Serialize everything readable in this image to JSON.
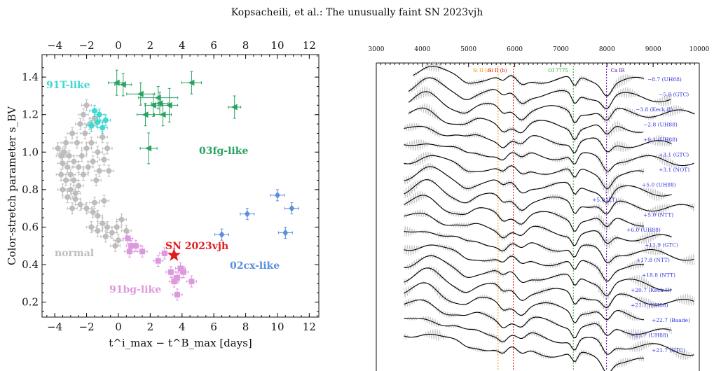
{
  "header": "Kopsacheili, et al.: The unusually faint SN 2023vjh",
  "colors": {
    "normal": "#bdbdbd",
    "t91": "#40d8d0",
    "fg03": "#2aa362",
    "cx02": "#5b8fdf",
    "bg91": "#dd99dd",
    "sn": "#e31b1b",
    "epoch": "#3333dd",
    "si_a": "#ff9900",
    "si_b": "#dd1111",
    "oi": "#22aa22",
    "ca": "#5500aa"
  },
  "chart_data": [
    {
      "type": "scatter",
      "xlabel": "t^i_max − t^B_max [days]",
      "ylabel": "Color-stretch parameter s_BV",
      "xlim": [
        -4.8,
        12.6
      ],
      "ylim": [
        0.12,
        1.52
      ],
      "xticks": [
        "−4",
        "−2",
        "0",
        "2",
        "4",
        "6",
        "8",
        "10",
        "12"
      ],
      "yticks": [
        "0.2",
        "0.4",
        "0.6",
        "0.8",
        "1.0",
        "1.2",
        "1.4"
      ],
      "groups": [
        {
          "name": "normal",
          "marker": "circle",
          "color": "normal",
          "points": [
            [
              -3.8,
              1.02
            ],
            [
              -3.6,
              0.98
            ],
            [
              -3.5,
              0.94
            ],
            [
              -3.4,
              1.0
            ],
            [
              -3.6,
              0.88
            ],
            [
              -3.3,
              0.85
            ],
            [
              -3.5,
              0.8
            ],
            [
              -3.2,
              0.92
            ],
            [
              -3.3,
              1.05
            ],
            [
              -3.1,
              0.98
            ],
            [
              -3.0,
              0.88
            ],
            [
              -3.0,
              0.8
            ],
            [
              -2.9,
              1.1
            ],
            [
              -2.8,
              0.95
            ],
            [
              -2.8,
              0.85
            ],
            [
              -2.7,
              0.78
            ],
            [
              -2.6,
              1.05
            ],
            [
              -2.5,
              0.92
            ],
            [
              -2.5,
              0.82
            ],
            [
              -2.4,
              1.15
            ],
            [
              -2.3,
              0.98
            ],
            [
              -2.2,
              0.88
            ],
            [
              -2.2,
              1.2
            ],
            [
              -2.1,
              1.1
            ],
            [
              -2.0,
              1.25
            ],
            [
              -2.0,
              1.02
            ],
            [
              -1.9,
              0.92
            ],
            [
              -1.8,
              1.15
            ],
            [
              -1.7,
              1.05
            ],
            [
              -1.6,
              0.95
            ],
            [
              -1.5,
              1.18
            ],
            [
              -1.4,
              0.85
            ],
            [
              -1.3,
              1.0
            ],
            [
              -1.2,
              0.9
            ],
            [
              -1.0,
              1.08
            ],
            [
              -0.9,
              0.96
            ],
            [
              -0.7,
              1.02
            ],
            [
              -0.6,
              0.9
            ],
            [
              -2.7,
              0.75
            ],
            [
              -2.4,
              0.72
            ],
            [
              -2.0,
              0.7
            ],
            [
              -1.6,
              0.68
            ],
            [
              -1.3,
              0.66
            ],
            [
              -1.0,
              0.62
            ],
            [
              -0.7,
              0.6
            ],
            [
              -0.4,
              0.57
            ],
            [
              -0.1,
              0.6
            ],
            [
              0.2,
              0.64
            ],
            [
              0.5,
              0.58
            ],
            [
              -1.7,
              0.6
            ],
            [
              -1.3,
              0.58
            ],
            [
              -0.8,
              0.55
            ],
            [
              -1.5,
              0.73
            ],
            [
              -0.9,
              0.74
            ],
            [
              -2.9,
              0.7
            ],
            [
              -3.2,
              0.76
            ],
            [
              0.0,
              0.53
            ],
            [
              -0.2,
              0.5
            ]
          ]
        },
        {
          "name": "91T-like",
          "marker": "circle",
          "color": "t91",
          "points": [
            [
              -1.5,
              1.22
            ],
            [
              -1.7,
              1.14
            ],
            [
              -1.3,
              1.16
            ],
            [
              -1.0,
              1.13
            ],
            [
              -0.8,
              1.17
            ],
            [
              -1.2,
              1.2
            ]
          ]
        },
        {
          "name": "03fg-like",
          "marker": "triangle-left",
          "color": "fg03",
          "points": [
            [
              -0.1,
              1.37
            ],
            [
              0.3,
              1.36
            ],
            [
              1.4,
              1.31
            ],
            [
              2.2,
              1.25
            ],
            [
              2.5,
              1.29
            ],
            [
              3.2,
              1.25
            ],
            [
              1.7,
              1.2
            ],
            [
              2.8,
              1.2
            ],
            [
              1.9,
              1.02
            ],
            [
              4.6,
              1.37
            ],
            [
              7.3,
              1.24
            ],
            [
              2.6,
              1.26
            ]
          ]
        },
        {
          "name": "02cx-like",
          "marker": "diamond",
          "color": "cx02",
          "points": [
            [
              6.5,
              0.56
            ],
            [
              8.1,
              0.67
            ],
            [
              10.0,
              0.77
            ],
            [
              10.9,
              0.7
            ],
            [
              10.5,
              0.57
            ]
          ]
        },
        {
          "name": "91bg-like",
          "marker": "square",
          "color": "bg91",
          "points": [
            [
              0.6,
              0.54
            ],
            [
              0.8,
              0.5
            ],
            [
              0.7,
              0.47
            ],
            [
              1.1,
              0.5
            ],
            [
              1.5,
              0.47
            ],
            [
              2.5,
              0.42
            ],
            [
              2.9,
              0.46
            ],
            [
              3.3,
              0.36
            ],
            [
              3.7,
              0.33
            ],
            [
              3.9,
              0.38
            ],
            [
              4.1,
              0.36
            ],
            [
              3.5,
              0.31
            ],
            [
              4.6,
              0.31
            ],
            [
              3.7,
              0.24
            ]
          ]
        }
      ],
      "highlight": {
        "name": "SN 2023vjh",
        "x": 3.5,
        "y": 0.45,
        "marker": "star",
        "color": "sn"
      },
      "group_labels": {
        "normal": "normal",
        "t91": "91T-like",
        "fg03": "03fg-like",
        "cx02": "02cx-like",
        "bg91": "91bg-like",
        "sn": "SN 2023vjh"
      }
    },
    {
      "type": "line",
      "xlabel": "",
      "xlim": [
        3000,
        10000
      ],
      "xticks": [
        "3000",
        "4000",
        "5000",
        "6000",
        "7000",
        "8000",
        "9000",
        "10000"
      ],
      "line_markers": [
        {
          "label": "Si II (a)",
          "wavelength": 5640,
          "color": "si_a"
        },
        {
          "label": "Si II (b)",
          "wavelength": 5970,
          "color": "si_b"
        },
        {
          "label": "OI 7775",
          "wavelength": 7270,
          "color": "oi"
        },
        {
          "label": "Ca IR",
          "wavelength": 7990,
          "color": "ca"
        }
      ],
      "epochs": [
        "−8.7 (UH88)",
        "−5.8 (GTC)",
        "−3.8 (Keck II)",
        "−2.8 (UH88)",
        "+0.1 (UH88)",
        "+3.1 (GTC)",
        "+3.1 (NOT)",
        "+5.0 (UH88)",
        "+5.0 (LT)",
        "+5.0 (NTT)",
        "+6.0 (UH88)",
        "+11.9 (GTC)",
        "+17.8 (NTT)",
        "+18.8 (NTT)",
        "+20.7 (Keck II)",
        "+21.7 (UH88)",
        "+22.7 (Baade)",
        "+21.7 (UH88)",
        "+21.7 (GTC)"
      ]
    }
  ]
}
